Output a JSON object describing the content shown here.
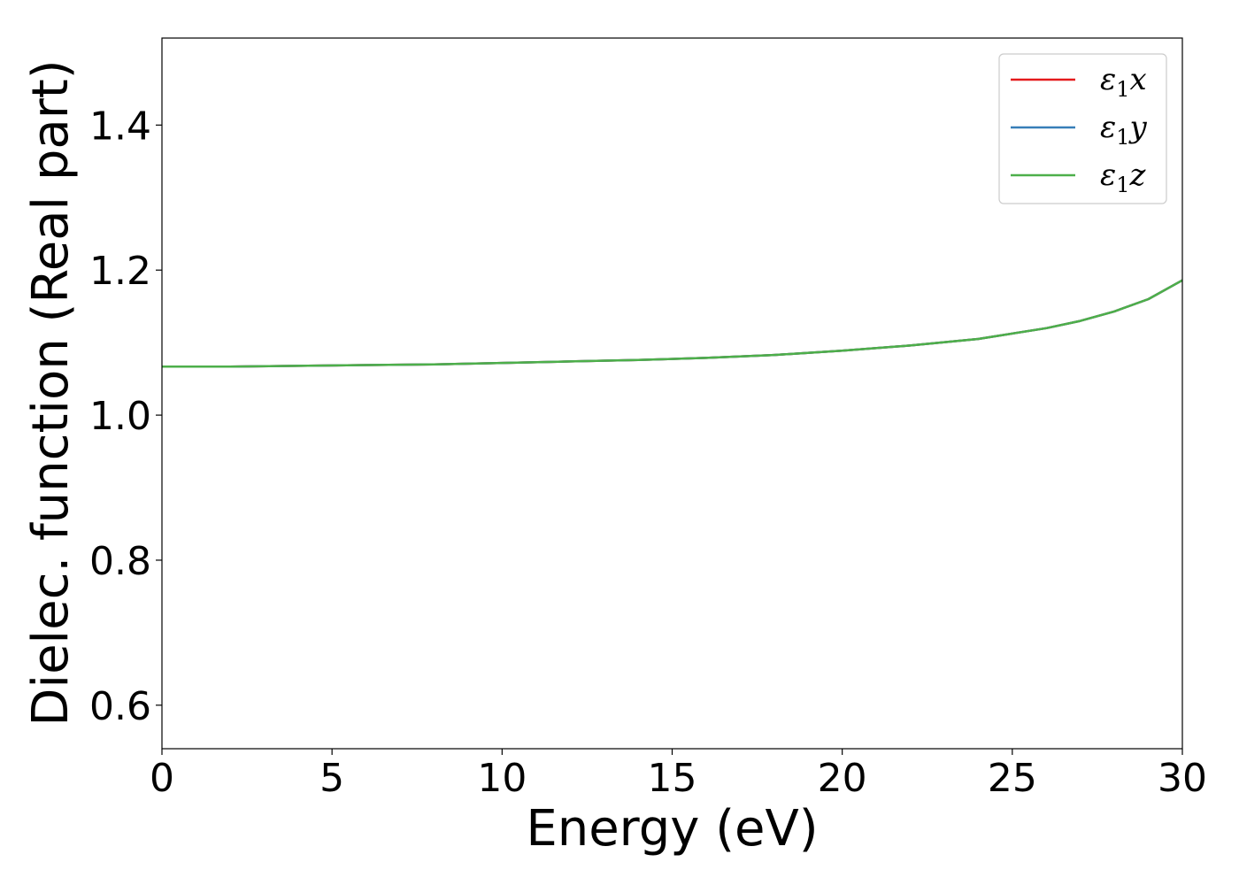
{
  "chart_data": {
    "type": "line",
    "title": "",
    "xlabel": "Energy (eV)",
    "ylabel": "Dielec. function (Real part)",
    "xlim": [
      0,
      30
    ],
    "ylim": [
      0.54,
      1.52
    ],
    "xticks": [
      0,
      5,
      10,
      15,
      20,
      25,
      30
    ],
    "xtick_labels": [
      "0",
      "5",
      "10",
      "15",
      "20",
      "25",
      "30"
    ],
    "yticks": [
      0.6,
      0.8,
      1.0,
      1.2,
      1.4
    ],
    "ytick_labels": [
      "0.6",
      "0.8",
      "1.0",
      "1.2",
      "1.4"
    ],
    "grid": false,
    "legend_position": "top-right",
    "x": [
      0,
      2,
      4,
      6,
      8,
      10,
      12,
      14,
      16,
      18,
      20,
      22,
      24,
      26,
      27,
      28,
      29,
      30
    ],
    "series": [
      {
        "name": "ε1x",
        "label_main": "ε",
        "label_sub": "1",
        "label_tail": "x",
        "color": "#e41a1c",
        "values": [
          1.067,
          1.067,
          1.068,
          1.069,
          1.07,
          1.072,
          1.074,
          1.076,
          1.079,
          1.083,
          1.089,
          1.096,
          1.105,
          1.12,
          1.13,
          1.143,
          1.16,
          1.186
        ]
      },
      {
        "name": "ε1y",
        "label_main": "ε",
        "label_sub": "1",
        "label_tail": "y",
        "color": "#377eb8",
        "values": [
          1.067,
          1.067,
          1.068,
          1.069,
          1.07,
          1.072,
          1.074,
          1.076,
          1.079,
          1.083,
          1.089,
          1.096,
          1.105,
          1.12,
          1.13,
          1.143,
          1.16,
          1.186
        ]
      },
      {
        "name": "ε1z",
        "label_main": "ε",
        "label_sub": "1",
        "label_tail": "z",
        "color": "#4daf4a",
        "values": [
          1.067,
          1.067,
          1.068,
          1.069,
          1.07,
          1.072,
          1.074,
          1.076,
          1.079,
          1.083,
          1.089,
          1.096,
          1.105,
          1.12,
          1.13,
          1.143,
          1.16,
          1.186
        ]
      }
    ]
  }
}
